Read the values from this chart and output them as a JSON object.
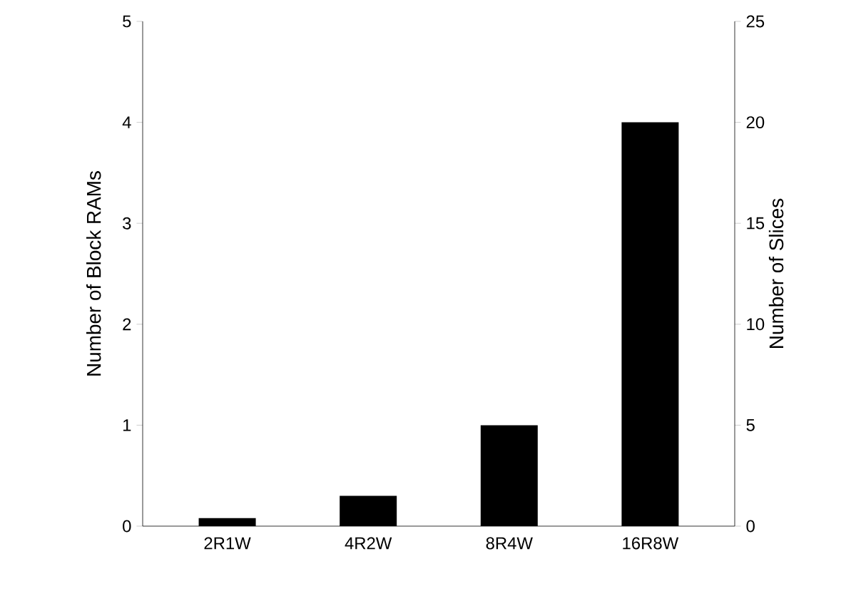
{
  "chart_data": {
    "type": "bar",
    "categories": [
      "2R1W",
      "4R2W",
      "8R4W",
      "16R8W"
    ],
    "ylabel": "Number of  Block RAMs",
    "y2label": "Number of Slices",
    "series": [
      {
        "color": "#000000",
        "values": [
          0.08,
          0.3,
          1,
          4
        ]
      }
    ],
    "ylim": [
      0,
      5
    ],
    "yticks": [
      0,
      1,
      2,
      3,
      4,
      5
    ],
    "y2lim": [
      0,
      25
    ],
    "y2ticks": [
      0,
      5,
      10,
      15,
      20,
      25
    ]
  }
}
